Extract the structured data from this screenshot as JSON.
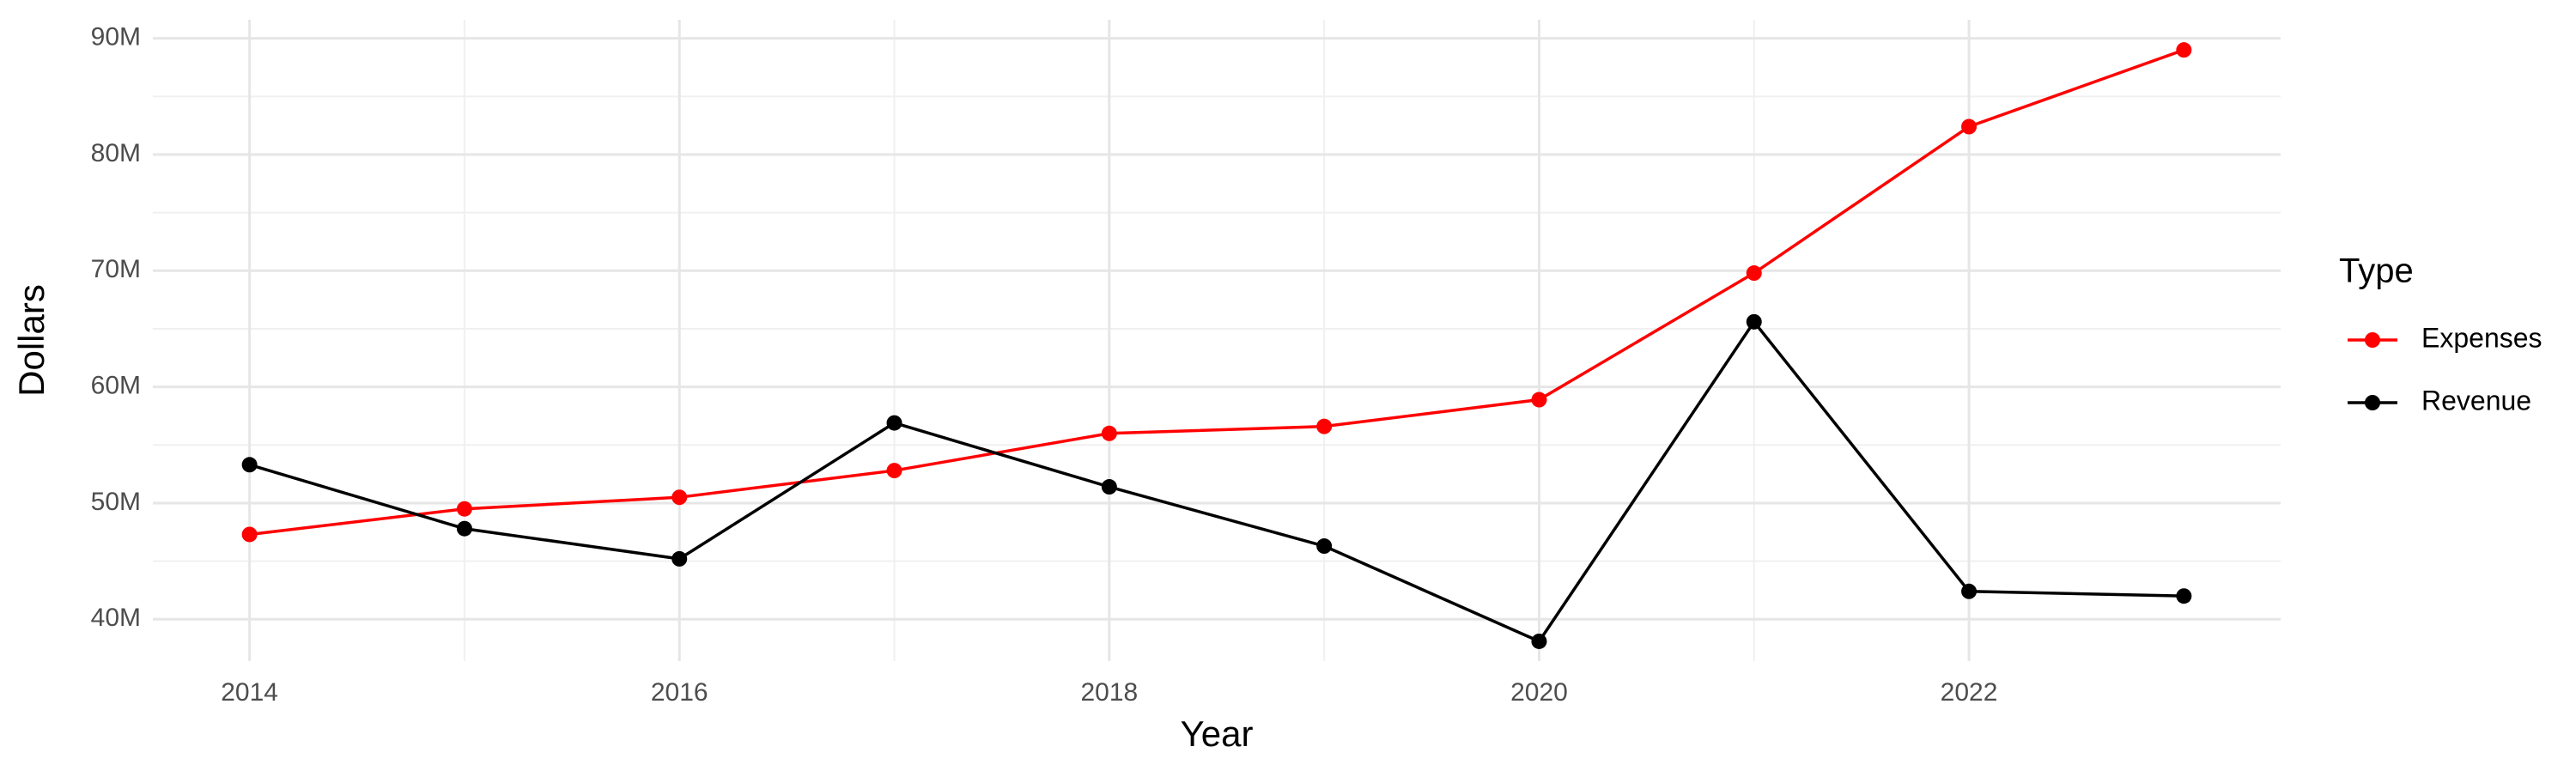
{
  "chart_data": {
    "type": "line",
    "x_label": "Year",
    "y_label": "Dollars",
    "legend_title": "Type",
    "x": [
      2014,
      2015,
      2016,
      2017,
      2018,
      2019,
      2020,
      2021,
      2022,
      2023
    ],
    "series": [
      {
        "name": "Expenses",
        "color": "#ff0000",
        "values": [
          47300000,
          49500000,
          50500000,
          52800000,
          56000000,
          56600000,
          58900000,
          69800000,
          82400000,
          89000000
        ]
      },
      {
        "name": "Revenue",
        "color": "#000000",
        "values": [
          53300000,
          47800000,
          45200000,
          56900000,
          51400000,
          46300000,
          38100000,
          65600000,
          42400000,
          42000000
        ]
      }
    ],
    "xlim": [
      2013.55,
      2023.45
    ],
    "ylim": [
      36400000,
      91600000
    ],
    "xticks": [
      2014,
      2016,
      2018,
      2020,
      2022
    ],
    "yticks": [
      {
        "value": 40000000,
        "label": "40M"
      },
      {
        "value": 50000000,
        "label": "50M"
      },
      {
        "value": 60000000,
        "label": "60M"
      },
      {
        "value": 70000000,
        "label": "70M"
      },
      {
        "value": 80000000,
        "label": "80M"
      },
      {
        "value": 90000000,
        "label": "90M"
      }
    ],
    "grid": true,
    "legend": "right"
  }
}
